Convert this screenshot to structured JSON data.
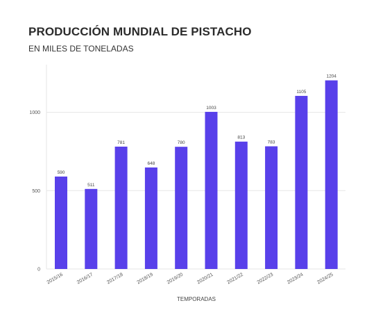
{
  "title": "PRODUCCIÓN MUNDIAL DE PISTACHO",
  "subtitle": "EN MILES DE TONELADAS",
  "colors": {
    "bar": "#5840EA",
    "grid": "#e6e6e6",
    "axis": "#bbbbbb"
  },
  "chart_data": {
    "type": "bar",
    "categories": [
      "2015/16",
      "2016/17",
      "2017/18",
      "2018/19",
      "2019/20",
      "2020/21",
      "2021/22",
      "2022/23",
      "2023/24",
      "2024/25"
    ],
    "values": [
      590,
      511,
      781,
      648,
      780,
      1003,
      813,
      783,
      1105,
      1204
    ],
    "xlabel": "TEMPORADAS",
    "ylabel": "",
    "ylim": [
      0,
      1300
    ],
    "yticks": [
      0,
      500,
      1000
    ],
    "grid": true,
    "legend": "none"
  }
}
